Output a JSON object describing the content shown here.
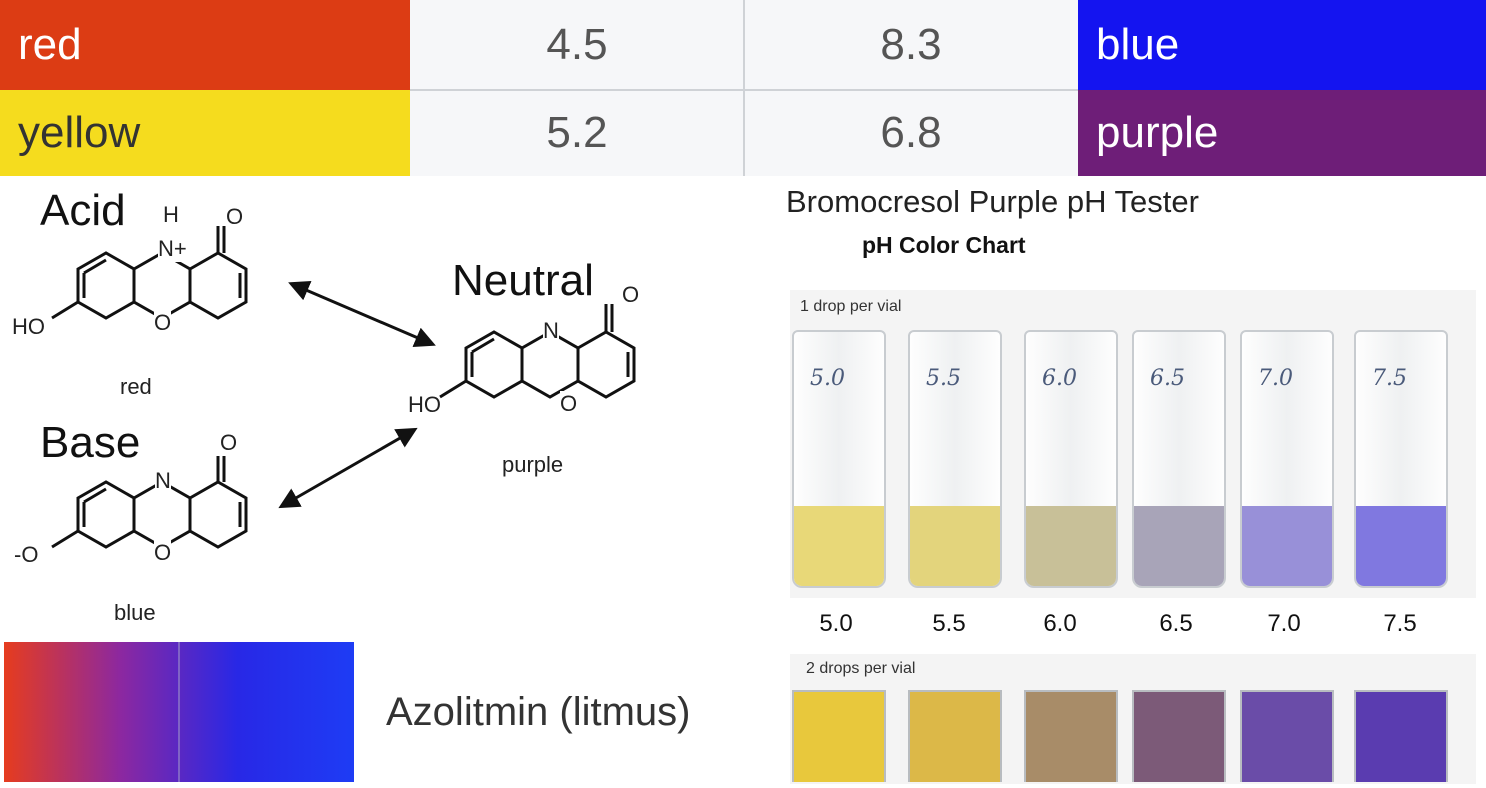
{
  "table": {
    "rows": [
      {
        "low_color": "red",
        "low_ph": "4.5",
        "high_ph": "8.3",
        "high_color": "blue",
        "low_hex": "#dc3c14",
        "high_hex": "#1414f0"
      },
      {
        "low_color": "yellow",
        "low_ph": "5.2",
        "high_ph": "6.8",
        "high_color": "purple",
        "low_hex": "#f5dc1e",
        "high_hex": "#6e1e78"
      }
    ]
  },
  "structures": {
    "acid_label": "Acid",
    "acid_color": "red",
    "base_label": "Base",
    "base_color": "blue",
    "neutral_label": "Neutral",
    "neutral_color": "purple",
    "atom_H": "H",
    "atom_N_plus": "N+",
    "atom_N": "N",
    "atom_O": "O",
    "atom_HO": "HO",
    "atom_O_minus": "-O"
  },
  "litmus": {
    "label": "Azolitmin (litmus)",
    "gradient": [
      "#e63c1e",
      "#8c28a0",
      "#2828e6",
      "#1e3cf5"
    ]
  },
  "tester": {
    "title": "Bromocresol Purple pH Tester",
    "subtitle": "pH Color Chart",
    "row1_label": "1 drop per vial",
    "row2_label": "2 drops per vial",
    "ph_values": [
      "5.0",
      "5.5",
      "6.0",
      "6.5",
      "7.0",
      "7.5"
    ],
    "handwritten": [
      "5.0",
      "5.5",
      "6.0",
      "6.5",
      "7.0",
      "7.5"
    ],
    "row1_colors": [
      "#e8d878",
      "#e3d47c",
      "#c8c098",
      "#a8a4b8",
      "#9890d8",
      "#8078e0"
    ],
    "row2_colors": [
      "#e8c83c",
      "#dcb848",
      "#a88c68",
      "#7c5a78",
      "#6a4ca8",
      "#5a3cb0"
    ]
  }
}
